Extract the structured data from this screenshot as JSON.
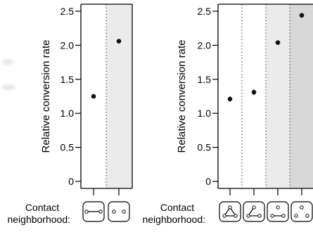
{
  "chart_data": [
    {
      "type": "scatter",
      "ylabel": "Relative conversion rate",
      "ylim": [
        0,
        2.5
      ],
      "yticks": [
        "0",
        "0.5",
        "1.0",
        "1.5",
        "2.0",
        "2.5"
      ],
      "xlabel": "Contact\nneighborhood:",
      "xlabel_lines": [
        "Contact",
        "neighborhood:"
      ],
      "categories": [
        "two-connected",
        "two-unconnected"
      ],
      "category_icons": [
        "connected-pair-icon",
        "unconnected-pair-icon"
      ],
      "values": [
        1.25,
        2.06
      ],
      "shaded_categories": [
        1
      ]
    },
    {
      "type": "scatter",
      "ylabel": "Relative conversion rate",
      "ylim": [
        0,
        2.5
      ],
      "yticks": [
        "0",
        "0.5",
        "1.0",
        "1.5",
        "2.0",
        "2.5"
      ],
      "xlabel": "Contact\nneighborhood:",
      "xlabel_lines": [
        "Contact",
        "neighborhood:"
      ],
      "categories": [
        "triangle",
        "path",
        "one-edge",
        "no-edges"
      ],
      "category_icons": [
        "triangle-icon",
        "path-icon",
        "one-edge-icon",
        "no-edges-icon"
      ],
      "values": [
        1.21,
        1.31,
        2.04,
        2.44
      ],
      "error": [
        0.04,
        0.04,
        0.03,
        0.03
      ],
      "shaded_categories": [
        2,
        3
      ],
      "shade_levels": [
        0,
        0,
        1,
        2
      ]
    }
  ],
  "colors": {
    "point": "#111111",
    "shade_light": "#ebebeb",
    "shade_dark": "#d8d8d8",
    "axis": "#000000"
  }
}
